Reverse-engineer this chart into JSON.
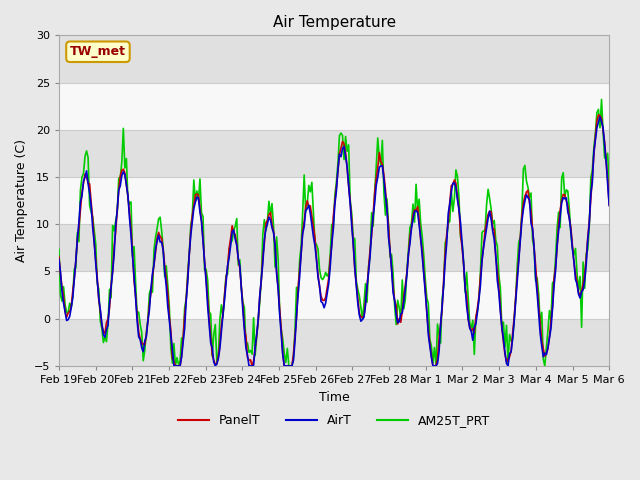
{
  "title": "Air Temperature",
  "xlabel": "Time",
  "ylabel": "Air Temperature (C)",
  "ylim": [
    -5,
    30
  ],
  "yticks": [
    -5,
    0,
    5,
    10,
    15,
    20,
    25,
    30
  ],
  "xtick_labels": [
    "Feb 19",
    "Feb 20",
    "Feb 21",
    "Feb 22",
    "Feb 23",
    "Feb 24",
    "Feb 25",
    "Feb 26",
    "Feb 27",
    "Feb 28",
    "Mar 1",
    "Mar 2",
    "Mar 3",
    "Mar 4",
    "Mar 5",
    "Mar 6"
  ],
  "legend_labels": [
    "PanelT",
    "AirT",
    "AM25T_PRT"
  ],
  "line_colors": [
    "#cc0000",
    "#0000cc",
    "#00cc00"
  ],
  "station_label": "TW_met",
  "station_label_color": "#990000",
  "station_box_facecolor": "#ffffcc",
  "station_box_edgecolor": "#cc9900",
  "bg_color": "#e8e8e8",
  "plot_bg_color": "#f0f0f0",
  "band1_color": "#e0e0e0",
  "band2_color": "#f8f8f8",
  "grid_color": "#cccccc",
  "n_days": 15
}
